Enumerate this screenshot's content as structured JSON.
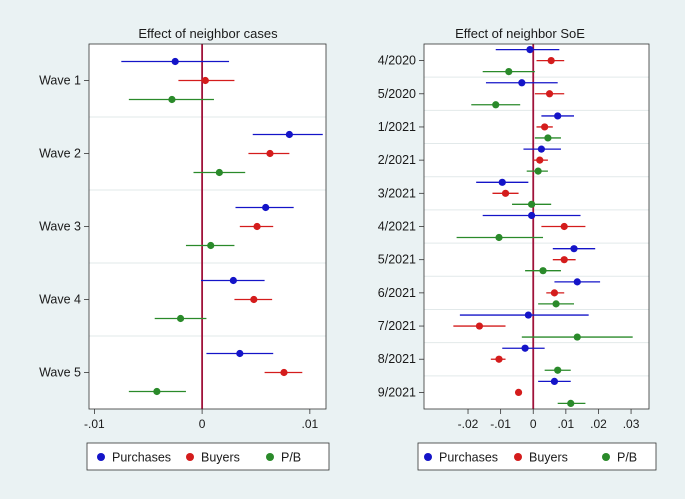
{
  "chart_data": [
    {
      "type": "coefficient-plot",
      "title": "Effect of neighbor cases",
      "categories": [
        "Wave 1",
        "Wave 2",
        "Wave 3",
        "Wave 4",
        "Wave 5"
      ],
      "xlim": [
        -0.0105,
        0.0115
      ],
      "xticks": [
        -0.01,
        0,
        0.01
      ],
      "xtick_labels": [
        "-.01",
        "0",
        ".01"
      ],
      "series": [
        {
          "name": "Purchases",
          "color": "#1414c8",
          "points": [
            {
              "est": -0.0025,
              "lo": -0.0075,
              "hi": 0.0025
            },
            {
              "est": 0.0081,
              "lo": 0.0047,
              "hi": 0.0112
            },
            {
              "est": 0.0059,
              "lo": 0.0031,
              "hi": 0.0085
            },
            {
              "est": 0.0029,
              "lo": -0.0001,
              "hi": 0.0058
            },
            {
              "est": 0.0035,
              "lo": 0.0004,
              "hi": 0.0066
            }
          ]
        },
        {
          "name": "Buyers",
          "color": "#d41c1c",
          "points": [
            {
              "est": 0.0003,
              "lo": -0.0022,
              "hi": 0.003
            },
            {
              "est": 0.0063,
              "lo": 0.0043,
              "hi": 0.0081
            },
            {
              "est": 0.0051,
              "lo": 0.0035,
              "hi": 0.0066
            },
            {
              "est": 0.0048,
              "lo": 0.003,
              "hi": 0.0065
            },
            {
              "est": 0.0076,
              "lo": 0.0058,
              "hi": 0.0093
            }
          ]
        },
        {
          "name": "P/B",
          "color": "#2a8a2a",
          "points": [
            {
              "est": -0.0028,
              "lo": -0.0068,
              "hi": 0.0011
            },
            {
              "est": 0.0016,
              "lo": -0.0008,
              "hi": 0.004
            },
            {
              "est": 0.0008,
              "lo": -0.0015,
              "hi": 0.003
            },
            {
              "est": -0.002,
              "lo": -0.0044,
              "hi": 0.0004
            },
            {
              "est": -0.0042,
              "lo": -0.0068,
              "hi": -0.0015
            }
          ]
        }
      ]
    },
    {
      "type": "coefficient-plot",
      "title": "Effect of neighbor SoE",
      "categories": [
        "4/2020",
        "5/2020",
        "1/2021",
        "2/2021",
        "3/2021",
        "4/2021",
        "5/2021",
        "6/2021",
        "7/2021",
        "8/2021",
        "9/2021"
      ],
      "xlim": [
        -0.0335,
        0.0355
      ],
      "xticks": [
        -0.02,
        -0.01,
        0,
        0.01,
        0.02,
        0.03
      ],
      "xtick_labels": [
        "-.02",
        "-.01",
        "0",
        ".01",
        ".02",
        ".03"
      ],
      "series": [
        {
          "name": "Purchases",
          "color": "#1414c8",
          "points": [
            {
              "est": -0.001,
              "lo": -0.0115,
              "hi": 0.008
            },
            {
              "est": -0.0035,
              "lo": -0.0145,
              "hi": 0.0075
            },
            {
              "est": 0.0075,
              "lo": 0.0025,
              "hi": 0.0125
            },
            {
              "est": 0.0025,
              "lo": -0.003,
              "hi": 0.0085
            },
            {
              "est": -0.0095,
              "lo": -0.0175,
              "hi": -0.0015
            },
            {
              "est": -0.0005,
              "lo": -0.0155,
              "hi": 0.0145
            },
            {
              "est": 0.0125,
              "lo": 0.006,
              "hi": 0.019
            },
            {
              "est": 0.0135,
              "lo": 0.0065,
              "hi": 0.0205
            },
            {
              "est": -0.0015,
              "lo": -0.0225,
              "hi": 0.017
            },
            {
              "est": -0.0025,
              "lo": -0.0095,
              "hi": 0.0035
            },
            {
              "est": 0.0065,
              "lo": 0.0015,
              "hi": 0.0115
            }
          ]
        },
        {
          "name": "Buyers",
          "color": "#d41c1c",
          "points": [
            {
              "est": 0.0055,
              "lo": 0.001,
              "hi": 0.0095
            },
            {
              "est": 0.005,
              "lo": 0.0005,
              "hi": 0.0095
            },
            {
              "est": 0.0035,
              "lo": 0.001,
              "hi": 0.006
            },
            {
              "est": 0.002,
              "lo": 0.0,
              "hi": 0.0045
            },
            {
              "est": -0.0085,
              "lo": -0.0125,
              "hi": -0.0045
            },
            {
              "est": 0.0095,
              "lo": 0.0025,
              "hi": 0.016
            },
            {
              "est": 0.0095,
              "lo": 0.006,
              "hi": 0.013
            },
            {
              "est": 0.0065,
              "lo": 0.004,
              "hi": 0.0095
            },
            {
              "est": -0.0165,
              "lo": -0.0245,
              "hi": -0.0085
            },
            {
              "est": -0.0105,
              "lo": -0.013,
              "hi": -0.0085
            },
            {
              "est": -0.0045,
              "lo": -0.0055,
              "hi": -0.0035
            }
          ]
        },
        {
          "name": "P/B",
          "color": "#2a8a2a",
          "points": [
            {
              "est": -0.0075,
              "lo": -0.0155,
              "hi": 0.0005
            },
            {
              "est": -0.0115,
              "lo": -0.019,
              "hi": -0.004
            },
            {
              "est": 0.0045,
              "lo": 0.0005,
              "hi": 0.0085
            },
            {
              "est": 0.0015,
              "lo": -0.002,
              "hi": 0.0045
            },
            {
              "est": -0.0005,
              "lo": -0.0065,
              "hi": 0.0055
            },
            {
              "est": -0.0105,
              "lo": -0.0235,
              "hi": 0.003
            },
            {
              "est": 0.003,
              "lo": -0.0025,
              "hi": 0.0085
            },
            {
              "est": 0.007,
              "lo": 0.0015,
              "hi": 0.0125
            },
            {
              "est": 0.0135,
              "lo": -0.0035,
              "hi": 0.0305
            },
            {
              "est": 0.0075,
              "lo": 0.0035,
              "hi": 0.0115
            },
            {
              "est": 0.0115,
              "lo": 0.0075,
              "hi": 0.016
            }
          ]
        }
      ]
    }
  ],
  "legend": [
    {
      "name": "Purchases",
      "color": "#1414c8"
    },
    {
      "name": "Buyers",
      "color": "#d41c1c"
    },
    {
      "name": "P/B",
      "color": "#2a8a2a"
    }
  ],
  "colors": {
    "zero_line": "#a0123a",
    "panel_bg": "#ffffff",
    "figure_bg": "#eaf2f3",
    "grid": "#e2e9ea",
    "axis": "#333333"
  }
}
